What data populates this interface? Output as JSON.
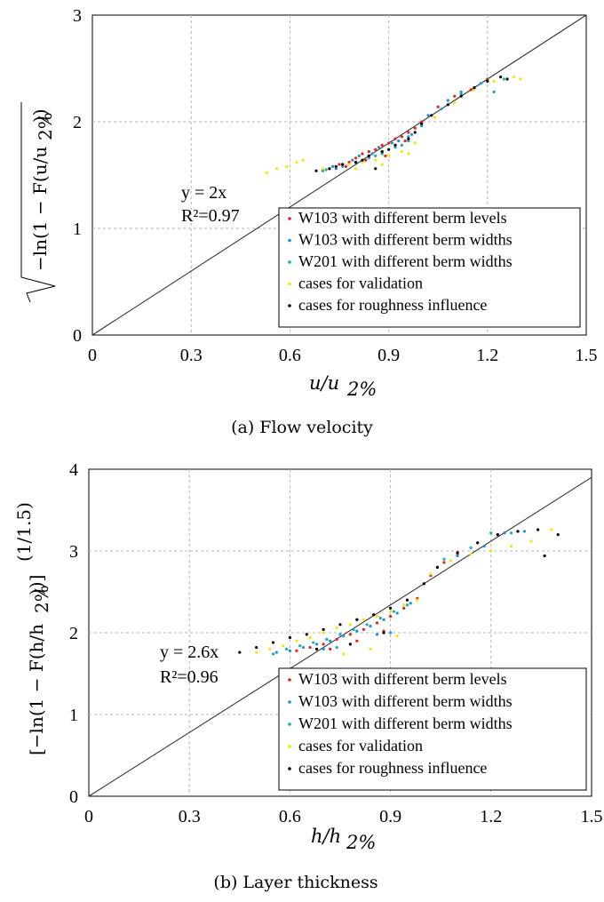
{
  "chart_data": [
    {
      "type": "scatter",
      "caption": "(a) Flow velocity",
      "xlabel": "u/u2%",
      "ylabel": "√(−ln(1 − F(u/u2%)))",
      "xlim": [
        0,
        1.5
      ],
      "ylim": [
        0,
        3
      ],
      "xticks": [
        "0",
        "0.3",
        "0.6",
        "0.9",
        "1.2",
        "1.5"
      ],
      "yticks": [
        "0",
        "1",
        "2",
        "3"
      ],
      "grid": true,
      "legend_position": "lower-right",
      "fit_line": {
        "slope": 2,
        "label": "y = 2x",
        "r2_label": "R²=0.97"
      },
      "series": [
        {
          "name": "W103 with different berm levels",
          "color": "#e8221b",
          "x": [
            0.72,
            0.75,
            0.78,
            0.8,
            0.82,
            0.84,
            0.86,
            0.88,
            0.9,
            0.92,
            0.94,
            0.96,
            0.98,
            1.0,
            1.05,
            1.1,
            1.15,
            1.2,
            0.77,
            0.83,
            0.89,
            0.95
          ],
          "y": [
            1.56,
            1.6,
            1.62,
            1.66,
            1.7,
            1.72,
            1.74,
            1.78,
            1.8,
            1.84,
            1.86,
            1.9,
            1.94,
            2.0,
            2.14,
            2.24,
            2.3,
            2.4,
            1.58,
            1.64,
            1.68,
            1.82
          ]
        },
        {
          "name": "W103 with different berm widths",
          "color": "#1f8fd6",
          "x": [
            0.7,
            0.73,
            0.76,
            0.79,
            0.81,
            0.85,
            0.87,
            0.91,
            0.93,
            0.97,
            1.02,
            1.08,
            1.12,
            1.18,
            1.22,
            0.74,
            0.8,
            0.88,
            0.96
          ],
          "y": [
            1.54,
            1.58,
            1.6,
            1.64,
            1.68,
            1.7,
            1.76,
            1.8,
            1.82,
            1.88,
            2.06,
            2.2,
            2.28,
            2.36,
            2.28,
            1.56,
            1.62,
            1.72,
            1.86
          ]
        },
        {
          "name": "W201 with different berm widths",
          "color": "#22a7b5",
          "x": [
            0.71,
            0.76,
            0.8,
            0.84,
            0.88,
            0.92,
            0.96,
            1.0,
            1.06,
            1.12,
            1.18,
            1.25,
            0.78,
            0.86,
            0.94
          ],
          "y": [
            1.55,
            1.58,
            1.62,
            1.66,
            1.7,
            1.76,
            1.82,
            1.96,
            2.12,
            2.26,
            2.36,
            2.4,
            1.6,
            1.68,
            1.78
          ]
        },
        {
          "name": "cases for validation",
          "color": "#f2e60d",
          "x": [
            0.53,
            0.56,
            0.59,
            0.62,
            0.64,
            0.7,
            0.74,
            0.78,
            0.82,
            0.86,
            0.9,
            0.94,
            0.98,
            1.04,
            1.1,
            1.16,
            1.22,
            1.28,
            1.3,
            0.8,
            0.88,
            0.96
          ],
          "y": [
            1.52,
            1.56,
            1.58,
            1.62,
            1.64,
            1.56,
            1.58,
            1.6,
            1.62,
            1.64,
            1.68,
            1.72,
            1.8,
            2.04,
            2.18,
            2.3,
            2.38,
            2.42,
            2.4,
            1.56,
            1.6,
            1.7
          ]
        },
        {
          "name": "cases for roughness influence",
          "color": "#000000",
          "x": [
            0.68,
            0.72,
            0.76,
            0.8,
            0.84,
            0.88,
            0.92,
            0.96,
            1.0,
            1.03,
            1.08,
            1.12,
            1.16,
            1.2,
            1.24,
            1.26,
            0.74,
            0.82,
            0.9,
            0.98,
            0.86
          ],
          "y": [
            1.54,
            1.56,
            1.6,
            1.62,
            1.68,
            1.72,
            1.78,
            1.84,
            1.98,
            2.06,
            2.16,
            2.24,
            2.32,
            2.38,
            2.42,
            2.4,
            1.58,
            1.64,
            1.74,
            1.9,
            1.56
          ]
        }
      ]
    },
    {
      "type": "scatter",
      "caption": "(b) Layer thickness",
      "xlabel": "h/h2%",
      "ylabel": "[−ln(1 − F(h/h2%))]^(1/1.5)",
      "xlim": [
        0,
        1.5
      ],
      "ylim": [
        0,
        4
      ],
      "xticks": [
        "0",
        "0.3",
        "0.6",
        "0.9",
        "1.2",
        "1.5"
      ],
      "yticks": [
        "0",
        "1",
        "2",
        "3",
        "4"
      ],
      "grid": true,
      "legend_position": "lower-right",
      "fit_line": {
        "slope": 2.6,
        "label": "y = 2.6x",
        "r2_label": "R²=0.96"
      },
      "series": [
        {
          "name": "W103 with different berm levels",
          "color": "#e8221b",
          "x": [
            0.62,
            0.66,
            0.7,
            0.74,
            0.78,
            0.82,
            0.86,
            0.9,
            0.94,
            0.98,
            1.02,
            1.06,
            1.1,
            1.16,
            1.22,
            1.28,
            0.72,
            0.8,
            0.88
          ],
          "y": [
            1.78,
            1.82,
            1.86,
            1.92,
            1.98,
            2.04,
            2.12,
            2.2,
            2.3,
            2.42,
            2.7,
            2.86,
            2.96,
            3.1,
            3.2,
            3.24,
            1.8,
            1.9,
            2.02
          ]
        },
        {
          "name": "W103 with different berm widths",
          "color": "#1f8fd6",
          "x": [
            0.56,
            0.6,
            0.64,
            0.68,
            0.72,
            0.76,
            0.8,
            0.84,
            0.88,
            0.92,
            0.96,
            1.04,
            1.1,
            1.18,
            1.24,
            1.3,
            0.7,
            0.86
          ],
          "y": [
            1.76,
            1.78,
            1.82,
            1.86,
            1.9,
            1.96,
            2.02,
            2.08,
            2.16,
            2.24,
            2.36,
            2.8,
            2.94,
            3.06,
            3.22,
            3.24,
            1.8,
            1.98
          ]
        },
        {
          "name": "W201 with different berm widths",
          "color": "#22a7b5",
          "x": [
            0.55,
            0.59,
            0.63,
            0.67,
            0.71,
            0.75,
            0.79,
            0.83,
            0.87,
            0.91,
            0.95,
            1.0,
            1.06,
            1.14,
            1.2,
            1.26,
            0.74,
            0.9
          ],
          "y": [
            1.74,
            1.8,
            1.84,
            1.88,
            1.92,
            1.98,
            2.04,
            2.1,
            2.18,
            2.26,
            2.34,
            2.6,
            2.9,
            3.04,
            3.22,
            3.22,
            1.82,
            2.0
          ]
        },
        {
          "name": "cases for validation",
          "color": "#f2e60d",
          "x": [
            0.5,
            0.54,
            0.58,
            0.62,
            0.66,
            0.7,
            0.74,
            0.78,
            0.82,
            0.86,
            0.9,
            0.94,
            0.98,
            1.02,
            1.08,
            1.14,
            1.2,
            1.26,
            1.32,
            1.38,
            0.76,
            0.84,
            0.92
          ],
          "y": [
            1.76,
            1.8,
            1.84,
            1.9,
            1.94,
            2.0,
            2.06,
            2.1,
            2.16,
            2.2,
            2.26,
            2.34,
            2.4,
            2.72,
            2.88,
            2.96,
            3.0,
            3.06,
            3.12,
            3.26,
            1.74,
            1.8,
            1.96
          ]
        },
        {
          "name": "cases for roughness influence",
          "color": "#000000",
          "x": [
            0.45,
            0.5,
            0.55,
            0.6,
            0.65,
            0.7,
            0.75,
            0.8,
            0.85,
            0.9,
            0.95,
            1.0,
            1.04,
            1.1,
            1.16,
            1.22,
            1.28,
            1.34,
            1.36,
            1.4,
            0.68,
            0.78,
            0.88
          ],
          "y": [
            1.76,
            1.82,
            1.88,
            1.94,
            1.98,
            2.04,
            2.1,
            2.16,
            2.22,
            2.3,
            2.4,
            2.6,
            2.8,
            2.98,
            3.1,
            3.2,
            3.24,
            3.26,
            2.94,
            3.2,
            1.8,
            1.86,
            2.0
          ]
        }
      ]
    }
  ]
}
